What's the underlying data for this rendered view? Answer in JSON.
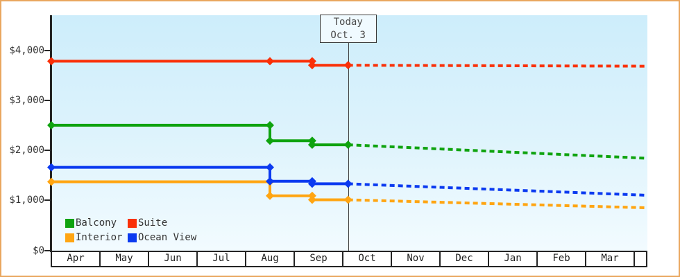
{
  "frame": {
    "border_color": "#e9a75f",
    "plot_gradient_top": "#cdedfb",
    "plot_gradient_bottom": "#f2fbff",
    "axis_color": "#242424"
  },
  "chart_data": {
    "type": "line",
    "title": "",
    "xlabel": "",
    "ylabel": "",
    "ylim": [
      0,
      4700
    ],
    "x_months_span": 12.27,
    "grid": false,
    "legend_position": "bottom-left",
    "forecast_style": "dotted",
    "categories": [
      "Apr",
      "May",
      "Jun",
      "Jul",
      "Aug",
      "Sep",
      "Oct",
      "Nov",
      "Dec",
      "Jan",
      "Feb",
      "Mar"
    ],
    "y_ticks": [
      {
        "label": "$0",
        "value": 0
      },
      {
        "label": "$1,000",
        "value": 1000
      },
      {
        "label": "$2,000",
        "value": 2000
      },
      {
        "label": "$3,000",
        "value": 3000
      },
      {
        "label": "$4,000",
        "value": 4000
      }
    ],
    "today": {
      "line1": "Today",
      "line2": "Oct. 3",
      "month_position": 6.11
    },
    "series": [
      {
        "name": "Balcony",
        "color": "#0fa30f",
        "solid_points": [
          [
            0,
            2500
          ],
          [
            4.5,
            2500
          ],
          [
            4.5,
            2190
          ],
          [
            5.37,
            2190
          ],
          [
            5.37,
            2110
          ],
          [
            6.11,
            2110
          ]
        ],
        "forecast_points": [
          [
            6.11,
            2110
          ],
          [
            12.27,
            1840
          ]
        ]
      },
      {
        "name": "Suite",
        "color": "#fa3008",
        "solid_points": [
          [
            0,
            3780
          ],
          [
            4.5,
            3780
          ],
          [
            5.37,
            3780
          ],
          [
            5.37,
            3700
          ],
          [
            6.11,
            3700
          ]
        ],
        "forecast_points": [
          [
            6.11,
            3700
          ],
          [
            12.27,
            3680
          ]
        ]
      },
      {
        "name": "Interior",
        "color": "#ffa512",
        "solid_points": [
          [
            0,
            1370
          ],
          [
            4.5,
            1370
          ],
          [
            4.5,
            1090
          ],
          [
            5.37,
            1090
          ],
          [
            5.37,
            1010
          ],
          [
            6.11,
            1010
          ]
        ],
        "forecast_points": [
          [
            6.11,
            1010
          ],
          [
            12.27,
            850
          ]
        ]
      },
      {
        "name": "Ocean View",
        "color": "#0b3af0",
        "solid_points": [
          [
            0,
            1660
          ],
          [
            4.5,
            1660
          ],
          [
            4.5,
            1380
          ],
          [
            5.37,
            1380
          ],
          [
            5.37,
            1330
          ],
          [
            6.11,
            1330
          ]
        ],
        "forecast_points": [
          [
            6.11,
            1330
          ],
          [
            12.27,
            1100
          ]
        ]
      }
    ]
  }
}
